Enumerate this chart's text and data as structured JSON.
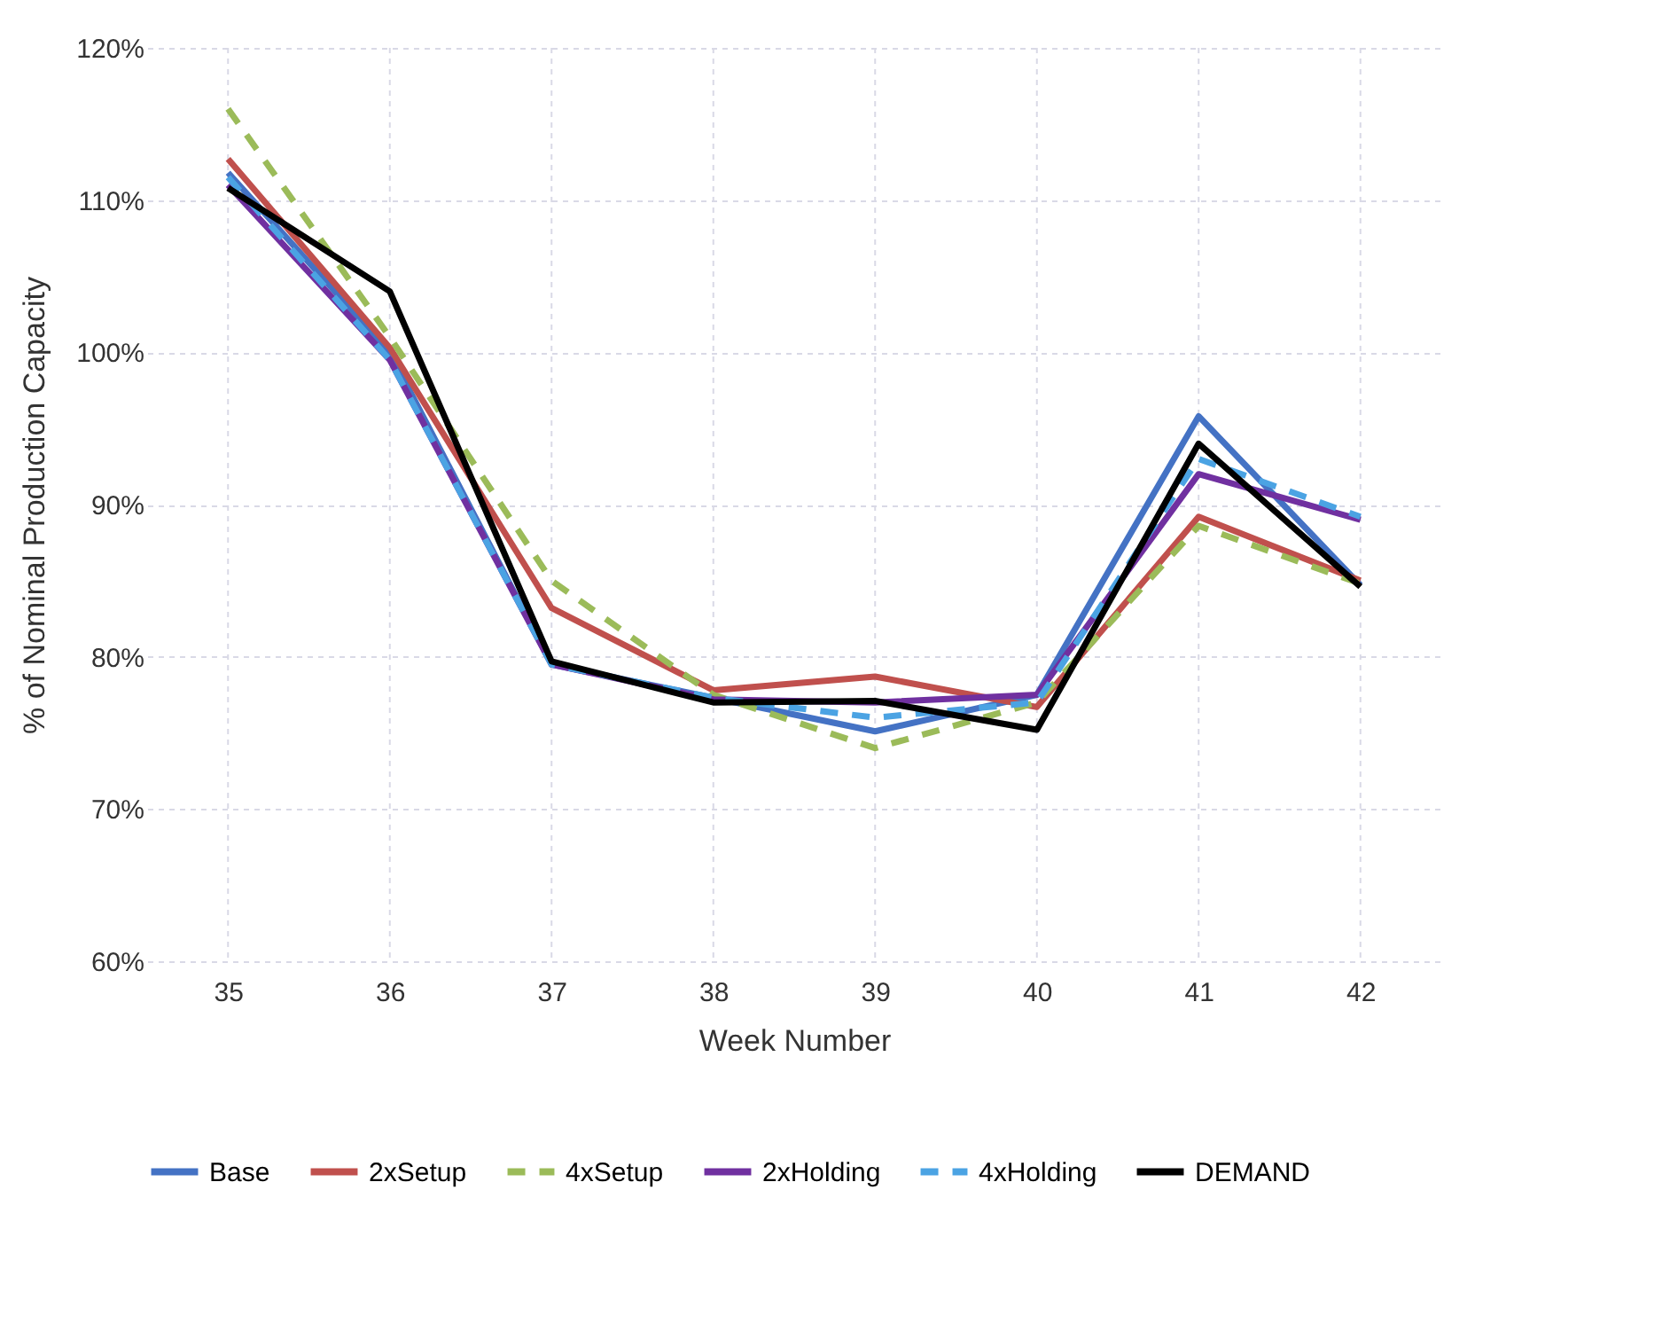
{
  "chart_data": {
    "type": "line",
    "xlabel": "Week Number",
    "ylabel": "% of Nominal Production Capacity",
    "categories": [
      "35",
      "36",
      "37",
      "38",
      "39",
      "40",
      "41",
      "42"
    ],
    "series": [
      {
        "name": "Base",
        "color": "#4472c4",
        "line_style": "solid",
        "values": [
          111.8,
          100,
          79.5,
          77.3,
          75.1,
          77.5,
          95.8,
          84.7
        ]
      },
      {
        "name": "2xSetup",
        "color": "#c0504d",
        "line_style": "solid",
        "values": [
          112.7,
          100.3,
          83.2,
          77.8,
          78.7,
          76.7,
          89.2,
          85
        ]
      },
      {
        "name": "4xSetup",
        "color": "#9bbb59",
        "line_style": "dashed",
        "values": [
          116,
          101,
          85,
          77.5,
          74,
          77,
          88.6,
          84.8
        ]
      },
      {
        "name": "2xHolding",
        "color": "#7030a0",
        "line_style": "solid",
        "values": [
          111,
          99.5,
          79.5,
          77.2,
          77,
          77.5,
          92,
          89
        ]
      },
      {
        "name": "4xHolding",
        "color": "#4ba3e3",
        "line_style": "dashed",
        "values": [
          111.5,
          99.5,
          79.5,
          77.3,
          76,
          77,
          93,
          89.2
        ]
      },
      {
        "name": "DEMAND",
        "color": "#000000",
        "line_style": "solid",
        "values": [
          110.8,
          104,
          79.7,
          77,
          77.1,
          75.2,
          94,
          84.6
        ]
      }
    ],
    "ylim": [
      60,
      120
    ],
    "yticks": [
      {
        "value": 60,
        "label": "60%"
      },
      {
        "value": 70,
        "label": "70%"
      },
      {
        "value": 80,
        "label": "80%"
      },
      {
        "value": 90,
        "label": "90%"
      },
      {
        "value": 100,
        "label": "100%"
      },
      {
        "value": 110,
        "label": "110%"
      },
      {
        "value": 120,
        "label": "120%"
      }
    ],
    "grid": true,
    "legend": "bottom",
    "marker": "none"
  }
}
